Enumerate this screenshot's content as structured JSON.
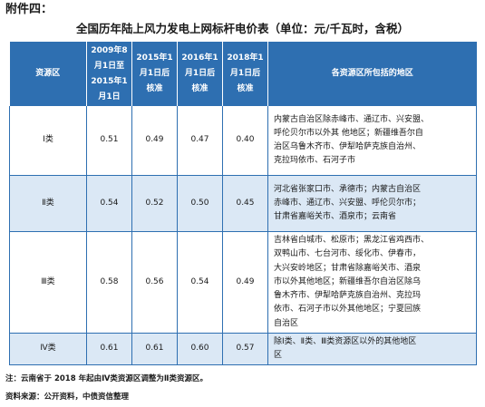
{
  "attachment_label": "附件四：",
  "table_title": "全国历年陆上风力发电上网标杆电价表（单位：元/千瓦时，含税）",
  "headers": [
    [
      "资源区"
    ],
    [
      "2009年8",
      "月1日至",
      "2015年1",
      "月1日"
    ],
    [
      "2015年1",
      "月1日后",
      "核准"
    ],
    [
      "2016年1",
      "月1日后",
      "核准"
    ],
    [
      "2018年1",
      "月1日后",
      "核准"
    ],
    [
      "各资源区所包括的地区"
    ]
  ],
  "rows": [
    {
      "region": "Ⅰ类",
      "p2009": "0.51",
      "p2015": "0.49",
      "p2016": "0.47",
      "p2018": "0.40",
      "areas": [
        "内蒙古自治区除赤峰市、通辽市、兴安盟、",
        "呼伦贝尔市以外其 他地区；新疆维吾尔自",
        "治区乌鲁木齐市、伊犁哈萨克族自治州、",
        "克拉玛依市、石河子市"
      ]
    },
    {
      "region": "Ⅱ类",
      "p2009": "0.54",
      "p2015": "0.52",
      "p2016": "0.50",
      "p2018": "0.45",
      "areas": [
        "河北省张家口市、承德市；内蒙古自治区",
        "赤峰市、通辽市、兴安盟、呼伦贝尔市；",
        "甘肃省嘉峪关市、酒泉市；云南省"
      ]
    },
    {
      "region": "Ⅲ类",
      "p2009": "0.58",
      "p2015": "0.56",
      "p2016": "0.54",
      "p2018": "0.49",
      "areas": [
        "吉林省白城市、松原市；黑龙江省鸡西市、",
        "双鸭山市、七台河市、绥化市、伊春市，",
        "大兴安岭地区；甘肃省除嘉峪关市、酒泉",
        "市以外其他地区；新疆维吾尔自治区除乌",
        "鲁木齐市、伊犁哈萨克族自治州、克拉玛",
        "依市、石河子市以外其他地区；宁夏回族",
        "自治区"
      ]
    },
    {
      "region": "Ⅳ类",
      "p2009": "0.61",
      "p2015": "0.61",
      "p2016": "0.60",
      "p2018": "0.57",
      "areas": [
        "除Ⅰ类、Ⅱ类、Ⅲ类资源区以外的其他地区",
        "区"
      ]
    }
  ],
  "note": "注：云南省于 2018 年起由Ⅳ类资源区调整为Ⅱ类资源区。",
  "source": "资料来源：公开资料，中债资信整理"
}
